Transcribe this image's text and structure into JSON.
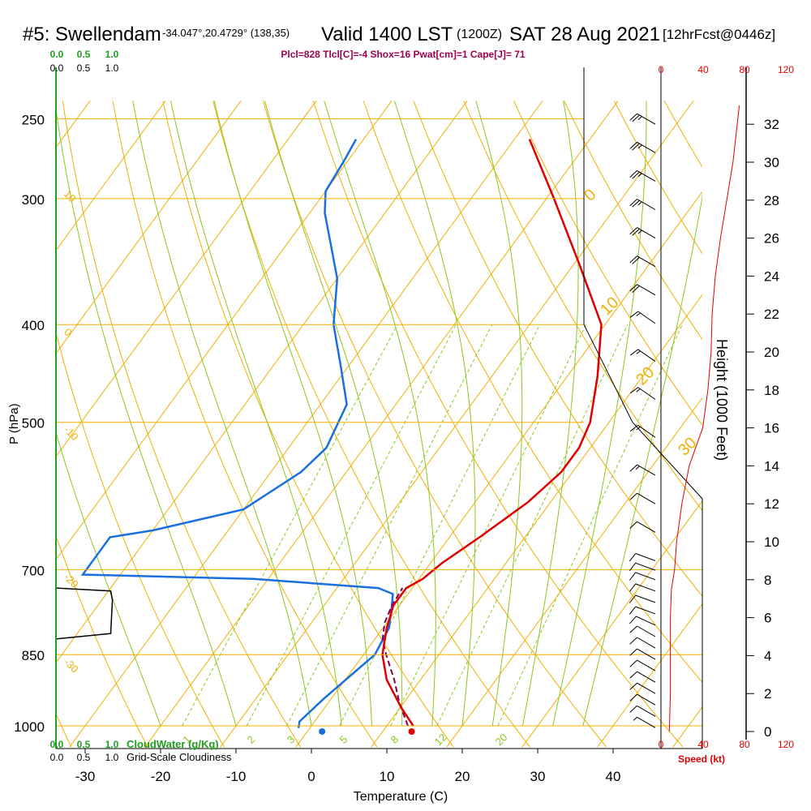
{
  "header": {
    "title": "#5: Swellendam",
    "location": "-34.047°,20.4729° (138,35)",
    "valid": "Valid 1400 LST",
    "utc": "(1200Z)",
    "date": "SAT 28 Aug 2021",
    "forecast": "[12hrFcst@0446z]",
    "indices": "Plcl=828 Tlcl[C]=-4 Shox=16 Pwat[cm]=1 Cape[J]= 71"
  },
  "labels": {
    "y_axis": "P (hPa)",
    "x_axis": "Temperature (C)",
    "height_axis": "Height (1000 Feet)",
    "speed_axis": "Speed (kt)",
    "cloudwater": "CloudWater (g/Kg)",
    "cloudiness": "Grid-Scale Cloudiness"
  },
  "colors": {
    "temperature": "#e00000",
    "dewpoint": "#1a6fe0",
    "parcel": "#800050",
    "isotherm": "#f0b000",
    "dry_adiabat": "#f0b000",
    "moist_adiabat": "#8cc81e",
    "mixing_ratio": "#8cc81e",
    "cloudwater": "#1ea01e",
    "speed": "#e00000",
    "indices": "#a00050"
  },
  "chart_data": {
    "type": "skew-t",
    "pressure_ticks": [
      "250",
      "300",
      "400",
      "500",
      "700",
      "850",
      "1000"
    ],
    "temperature_ticks": [
      "-30",
      "-20",
      "-10",
      "0",
      "10",
      "20",
      "30",
      "40"
    ],
    "height_ticks": [
      "0",
      "2",
      "4",
      "6",
      "8",
      "10",
      "12",
      "14",
      "16",
      "18",
      "20",
      "22",
      "24",
      "26",
      "28",
      "30",
      "32"
    ],
    "speed_ticks": [
      "0",
      "40",
      "80",
      "120"
    ],
    "cloud_ticks_top_green": [
      "0.0",
      "0.5",
      "1.0"
    ],
    "cloud_ticks_top_black": [
      "0.0",
      "0.5",
      "1.0"
    ],
    "cloud_ticks_bottom_green": [
      "0.0",
      "0.5",
      "1.0"
    ],
    "cloud_ticks_bottom_black": [
      "0.0",
      "0.5",
      "1.0"
    ],
    "mixing_ratio_labels": [
      "1",
      "2",
      "3",
      "5",
      "8",
      "12",
      "20"
    ],
    "dry_adiabat_labels": [
      "0",
      "10",
      "20",
      "30"
    ],
    "isotherm_edge_labels": [
      "10",
      "0",
      "-10",
      "-20",
      "-30"
    ],
    "temperature_profile": [
      {
        "p": 1000,
        "t": 13.5
      },
      {
        "p": 960,
        "t": 10.2
      },
      {
        "p": 900,
        "t": 5.5
      },
      {
        "p": 850,
        "t": 2.5
      },
      {
        "p": 800,
        "t": 0.5
      },
      {
        "p": 760,
        "t": -0.8
      },
      {
        "p": 730,
        "t": -0.8
      },
      {
        "p": 715,
        "t": 0.5
      },
      {
        "p": 690,
        "t": 1.5
      },
      {
        "p": 650,
        "t": 4.0
      },
      {
        "p": 600,
        "t": 7.0
      },
      {
        "p": 560,
        "t": 8.5
      },
      {
        "p": 530,
        "t": 8.5
      },
      {
        "p": 500,
        "t": 7.5
      },
      {
        "p": 450,
        "t": 4.0
      },
      {
        "p": 400,
        "t": -0.5
      },
      {
        "p": 350,
        "t": -9.0
      },
      {
        "p": 300,
        "t": -19.0
      },
      {
        "p": 262,
        "t": -28.0
      }
    ],
    "dewpoint_profile": [
      {
        "p": 1005,
        "t": -1.5
      },
      {
        "p": 990,
        "t": -2.0
      },
      {
        "p": 940,
        "t": -1.0
      },
      {
        "p": 850,
        "t": 1.5
      },
      {
        "p": 800,
        "t": 0.8
      },
      {
        "p": 760,
        "t": -1.0
      },
      {
        "p": 740,
        "t": -2.0
      },
      {
        "p": 730,
        "t": -4.5
      },
      {
        "p": 715,
        "t": -22.0
      },
      {
        "p": 708,
        "t": -45.0
      },
      {
        "p": 650,
        "t": -45.0
      },
      {
        "p": 640,
        "t": -40.0
      },
      {
        "p": 610,
        "t": -30.0
      },
      {
        "p": 560,
        "t": -26.0
      },
      {
        "p": 530,
        "t": -25.0
      },
      {
        "p": 480,
        "t": -26.5
      },
      {
        "p": 440,
        "t": -31.0
      },
      {
        "p": 400,
        "t": -36.0
      },
      {
        "p": 360,
        "t": -40.0
      },
      {
        "p": 310,
        "t": -48.0
      },
      {
        "p": 295,
        "t": -50.0
      },
      {
        "p": 275,
        "t": -50.5
      },
      {
        "p": 262,
        "t": -51.0
      }
    ],
    "parcel_profile": [
      {
        "p": 1000,
        "t": 12.8
      },
      {
        "p": 950,
        "t": 9.5
      },
      {
        "p": 900,
        "t": 6.5
      },
      {
        "p": 850,
        "t": 3.0
      },
      {
        "p": 820,
        "t": 1.0
      },
      {
        "p": 790,
        "t": -0.3
      },
      {
        "p": 760,
        "t": -1.0
      },
      {
        "p": 730,
        "t": -1.3
      }
    ],
    "surface_temperature": 13.5,
    "surface_dewpoint": 1.2,
    "wind_barbs": [
      {
        "h": 0.2,
        "dir": 300,
        "spd": 8
      },
      {
        "h": 0.8,
        "dir": 300,
        "spd": 10
      },
      {
        "h": 1.4,
        "dir": 300,
        "spd": 10
      },
      {
        "h": 2.0,
        "dir": 300,
        "spd": 10
      },
      {
        "h": 2.6,
        "dir": 300,
        "spd": 10
      },
      {
        "h": 3.2,
        "dir": 300,
        "spd": 10
      },
      {
        "h": 3.8,
        "dir": 300,
        "spd": 10
      },
      {
        "h": 4.4,
        "dir": 300,
        "spd": 10
      },
      {
        "h": 5.0,
        "dir": 300,
        "spd": 10
      },
      {
        "h": 5.6,
        "dir": 295,
        "spd": 10
      },
      {
        "h": 6.2,
        "dir": 290,
        "spd": 10
      },
      {
        "h": 6.8,
        "dir": 290,
        "spd": 10
      },
      {
        "h": 7.4,
        "dir": 290,
        "spd": 10
      },
      {
        "h": 8.0,
        "dir": 290,
        "spd": 10
      },
      {
        "h": 8.5,
        "dir": 290,
        "spd": 10
      },
      {
        "h": 9.0,
        "dir": 290,
        "spd": 10
      },
      {
        "h": 10.5,
        "dir": 300,
        "spd": 10
      },
      {
        "h": 12.0,
        "dir": 300,
        "spd": 10
      },
      {
        "h": 13.5,
        "dir": 300,
        "spd": 15
      },
      {
        "h": 15.5,
        "dir": 305,
        "spd": 15
      },
      {
        "h": 17.5,
        "dir": 305,
        "spd": 15
      },
      {
        "h": 19.5,
        "dir": 305,
        "spd": 15
      },
      {
        "h": 21.5,
        "dir": 305,
        "spd": 15
      },
      {
        "h": 23.0,
        "dir": 300,
        "spd": 20
      },
      {
        "h": 24.5,
        "dir": 300,
        "spd": 20
      },
      {
        "h": 26.0,
        "dir": 300,
        "spd": 25
      },
      {
        "h": 27.5,
        "dir": 300,
        "spd": 25
      },
      {
        "h": 29.0,
        "dir": 300,
        "spd": 25
      },
      {
        "h": 30.5,
        "dir": 300,
        "spd": 25
      },
      {
        "h": 32.0,
        "dir": 300,
        "spd": 25
      }
    ],
    "speed_profile": [
      {
        "h": 0.0,
        "spd": 8
      },
      {
        "h": 2.0,
        "spd": 9
      },
      {
        "h": 6.0,
        "spd": 9
      },
      {
        "h": 7.5,
        "spd": 10
      },
      {
        "h": 8.5,
        "spd": 13
      },
      {
        "h": 10.0,
        "spd": 15
      },
      {
        "h": 12.0,
        "spd": 20
      },
      {
        "h": 14.0,
        "spd": 27
      },
      {
        "h": 16.0,
        "spd": 40
      },
      {
        "h": 18.0,
        "spd": 45
      },
      {
        "h": 20.0,
        "spd": 48
      },
      {
        "h": 22.0,
        "spd": 49
      },
      {
        "h": 24.0,
        "spd": 52
      },
      {
        "h": 26.0,
        "spd": 57
      },
      {
        "h": 28.0,
        "spd": 63
      },
      {
        "h": 30.0,
        "spd": 69
      },
      {
        "h": 32.0,
        "spd": 73
      },
      {
        "h": 33.0,
        "spd": 75
      }
    ],
    "cloudiness_profile": [
      {
        "p": 820,
        "frac": 0.0
      },
      {
        "p": 810,
        "frac": 0.95
      },
      {
        "p": 750,
        "frac": 0.98
      },
      {
        "p": 735,
        "frac": 0.95
      },
      {
        "p": 730,
        "frac": 0.0
      }
    ],
    "wind_range_kt": [
      0,
      120
    ],
    "height_range_kft": [
      0,
      33
    ],
    "pressure_range": [
      250,
      1000
    ],
    "temperature_range": [
      -35,
      45
    ]
  }
}
